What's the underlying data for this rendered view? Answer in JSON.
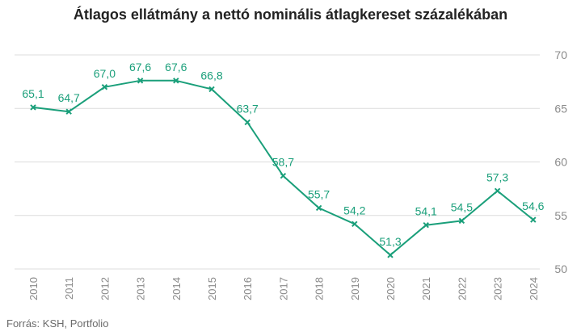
{
  "chart_data": {
    "type": "line",
    "title": "Átlagos ellátmány a nettó nominális átlagkereset százalékában",
    "x": [
      "2010",
      "2011",
      "2012",
      "2013",
      "2014",
      "2015",
      "2016",
      "2017",
      "2018",
      "2019",
      "2020",
      "2021",
      "2022",
      "2023",
      "2024"
    ],
    "values": [
      65.1,
      64.7,
      67.0,
      67.6,
      67.6,
      66.8,
      63.7,
      58.7,
      55.7,
      54.2,
      51.3,
      54.1,
      54.5,
      57.3,
      54.6
    ],
    "value_labels": [
      "65,1",
      "64,7",
      "67,0",
      "67,6",
      "67,6",
      "66,8",
      "63,7",
      "58,7",
      "55,7",
      "54,2",
      "51,3",
      "54,1",
      "54,5",
      "57,3",
      "54,6"
    ],
    "yticks": [
      "50",
      "55",
      "60",
      "65",
      "70"
    ],
    "ylim": [
      50,
      70
    ],
    "y_axis_position": "right",
    "grid": true,
    "color": "#1a9f7a",
    "marker": "x"
  },
  "source": "Forrás: KSH, Portfolio"
}
